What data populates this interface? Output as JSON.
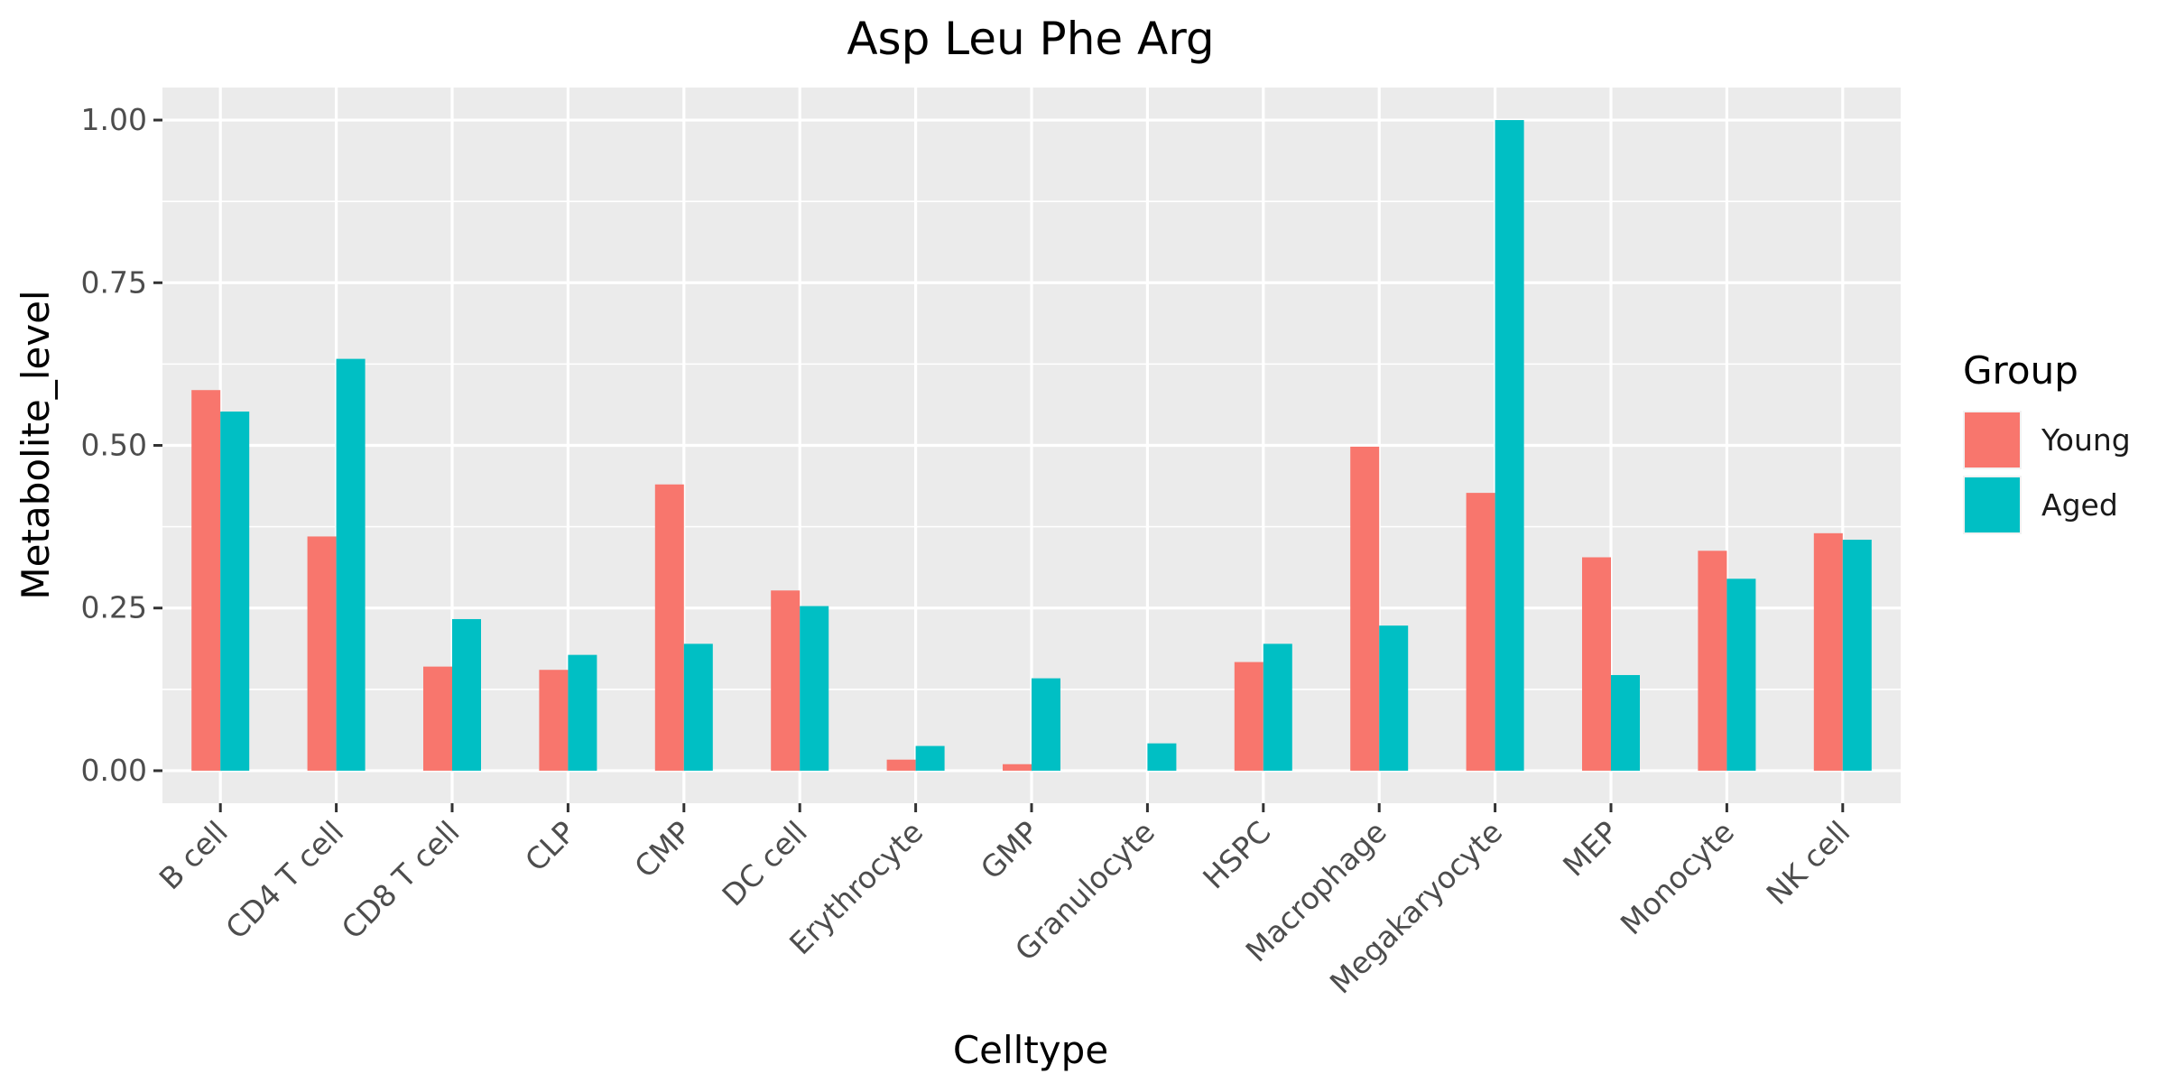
{
  "chart_data": {
    "type": "bar",
    "title": "Asp Leu Phe Arg",
    "xlabel": "Celltype",
    "ylabel": "Metabolite_level",
    "categories": [
      "B cell",
      "CD4 T cell",
      "CD8 T cell",
      "CLP",
      "CMP",
      "DC cell",
      "Erythrocyte",
      "GMP",
      "Granulocyte",
      "HSPC",
      "Macrophage",
      "Megakaryocyte",
      "MEP",
      "Monocyte",
      "NK cell"
    ],
    "series": [
      {
        "name": "Young",
        "color": "#F8766D",
        "values": [
          0.585,
          0.36,
          0.16,
          0.155,
          0.44,
          0.277,
          0.017,
          0.01,
          null,
          0.167,
          0.498,
          0.427,
          0.328,
          0.338,
          0.365
        ]
      },
      {
        "name": "Aged",
        "color": "#00BFC4",
        "values": [
          0.552,
          0.633,
          0.233,
          0.178,
          0.195,
          0.253,
          0.038,
          0.142,
          0.042,
          0.195,
          0.223,
          1.0,
          0.147,
          0.295,
          0.355
        ]
      }
    ],
    "ylim": [
      -0.05,
      1.05
    ],
    "yticks": [
      0,
      0.25,
      0.5,
      0.75,
      1.0
    ],
    "ytick_labels": [
      "0.00",
      "0.25",
      "0.50",
      "0.75",
      "1.00"
    ],
    "grid": true,
    "legend": {
      "title": "Group",
      "placement": "right"
    },
    "panel_background": "#EBEBEB",
    "grid_color": "#FFFFFF"
  }
}
